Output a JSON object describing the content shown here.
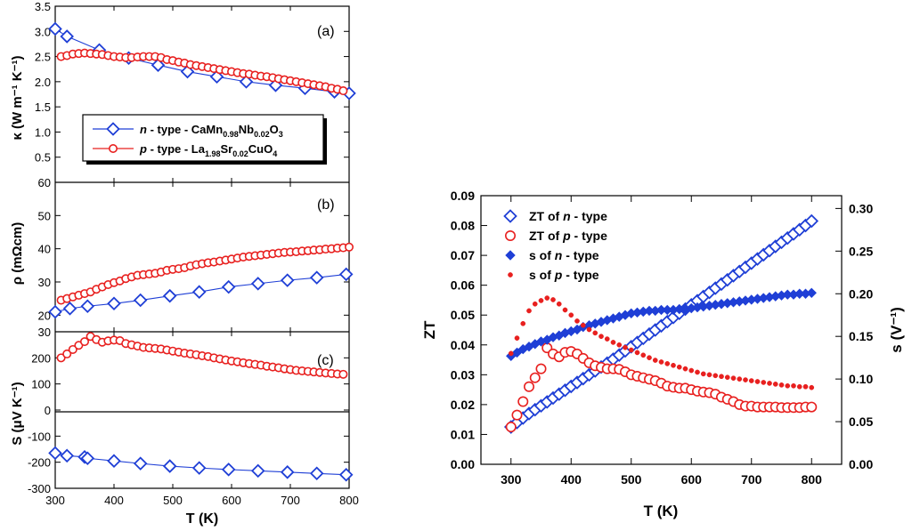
{
  "chart_data": [
    {
      "type": "line",
      "panel": "a",
      "panel_label": "(a)",
      "ylabel": "κ (W m⁻¹ K⁻¹)",
      "ylim": [
        0.0,
        3.5
      ],
      "yticks": [
        "0.5",
        "1.0",
        "1.5",
        "2.0",
        "2.5",
        "3.0",
        "3.5"
      ],
      "top_cut_label": "60",
      "legend_position": "middle-left",
      "series": [
        {
          "name": "n - type - CaMn0.98Nb0.02O3",
          "legend": {
            "prefix": "n",
            "mid": " - type - CaMn",
            "sub1": "0.98",
            "t2": "Nb",
            "sub2": "0.02",
            "t3": "O",
            "sub3": "3"
          },
          "color": "#1f3fd6",
          "marker": "diamond",
          "x": [
            300,
            320,
            375,
            425,
            475,
            525,
            575,
            625,
            675,
            725,
            775,
            800
          ],
          "y": [
            3.05,
            2.9,
            2.63,
            2.47,
            2.33,
            2.2,
            2.1,
            2.0,
            1.93,
            1.87,
            1.8,
            1.77
          ]
        },
        {
          "name": "p - type - La1.98Sr0.02CuO4",
          "legend": {
            "prefix": "p",
            "mid": " - type - La",
            "sub1": "1.98",
            "t2": "Sr",
            "sub2": "0.02",
            "t3": "CuO",
            "sub3": "4"
          },
          "color": "#e8201f",
          "marker": "circle",
          "x": [
            310,
            320,
            330,
            340,
            350,
            360,
            370,
            380,
            390,
            400,
            410,
            420,
            430,
            440,
            450,
            460,
            470,
            480,
            490,
            500,
            510,
            520,
            530,
            540,
            550,
            560,
            570,
            580,
            590,
            600,
            610,
            620,
            630,
            640,
            650,
            660,
            670,
            680,
            690,
            700,
            710,
            720,
            730,
            740,
            750,
            760,
            770,
            780,
            790
          ],
          "y": [
            2.5,
            2.52,
            2.55,
            2.56,
            2.57,
            2.56,
            2.55,
            2.54,
            2.52,
            2.5,
            2.49,
            2.48,
            2.48,
            2.49,
            2.5,
            2.5,
            2.5,
            2.48,
            2.44,
            2.42,
            2.39,
            2.37,
            2.34,
            2.32,
            2.3,
            2.28,
            2.26,
            2.24,
            2.22,
            2.2,
            2.18,
            2.16,
            2.15,
            2.13,
            2.11,
            2.1,
            2.08,
            2.06,
            2.04,
            2.02,
            2.0,
            1.98,
            1.96,
            1.94,
            1.92,
            1.9,
            1.87,
            1.85,
            1.82
          ]
        }
      ]
    },
    {
      "type": "line",
      "panel": "b",
      "panel_label": "(b)",
      "ylabel": "ρ (mΩcm)",
      "ylim": [
        15,
        60
      ],
      "yticks": [
        "20",
        "30",
        "40",
        "50"
      ],
      "top_cut_label": "30",
      "series": [
        {
          "name": "n - type",
          "color": "#1f3fd6",
          "marker": "diamond",
          "x": [
            300,
            325,
            355,
            400,
            445,
            495,
            545,
            595,
            645,
            695,
            745,
            795
          ],
          "y": [
            21.0,
            22.0,
            22.7,
            23.5,
            24.5,
            25.8,
            27.0,
            28.5,
            29.5,
            30.5,
            31.3,
            32.3
          ]
        },
        {
          "name": "p - type",
          "color": "#e8201f",
          "marker": "circle",
          "x": [
            310,
            320,
            330,
            340,
            350,
            360,
            370,
            380,
            390,
            400,
            410,
            420,
            430,
            440,
            450,
            460,
            470,
            480,
            490,
            500,
            510,
            520,
            530,
            540,
            550,
            560,
            570,
            580,
            590,
            600,
            610,
            620,
            630,
            640,
            650,
            660,
            670,
            680,
            690,
            700,
            710,
            720,
            730,
            740,
            750,
            760,
            770,
            780,
            790,
            800
          ],
          "y": [
            24.5,
            25.0,
            25.5,
            26.0,
            26.5,
            27.0,
            27.8,
            28.5,
            29.2,
            29.8,
            30.3,
            31.0,
            31.5,
            32.0,
            32.2,
            32.4,
            32.6,
            33.0,
            33.5,
            33.8,
            34.0,
            34.3,
            34.8,
            35.2,
            35.5,
            35.8,
            36.0,
            36.3,
            36.6,
            36.9,
            37.2,
            37.5,
            37.7,
            37.9,
            38.1,
            38.3,
            38.5,
            38.7,
            38.9,
            39.0,
            39.1,
            39.3,
            39.4,
            39.6,
            39.7,
            39.9,
            40.0,
            40.2,
            40.3,
            40.5
          ]
        }
      ]
    },
    {
      "type": "line",
      "panel": "c",
      "panel_label": "(c)",
      "ylabel": "S (μV K⁻¹)",
      "ylim": [
        -300,
        300
      ],
      "yticks": [
        "-300",
        "-200",
        "-100",
        "0",
        "100",
        "200"
      ],
      "xlabel": "T (K)",
      "xlim": [
        300,
        800
      ],
      "xticks": [
        "300",
        "400",
        "500",
        "600",
        "700",
        "800"
      ],
      "series": [
        {
          "name": "n - type",
          "color": "#1f3fd6",
          "marker": "diamond",
          "x": [
            300,
            320,
            350,
            355,
            400,
            445,
            495,
            545,
            595,
            645,
            695,
            745,
            795
          ],
          "y": [
            -165,
            -175,
            -180,
            -185,
            -195,
            -205,
            -215,
            -222,
            -228,
            -233,
            -238,
            -243,
            -248
          ]
        },
        {
          "name": "p - type",
          "color": "#e8201f",
          "marker": "circle",
          "x": [
            310,
            320,
            330,
            340,
            350,
            360,
            370,
            380,
            390,
            400,
            410,
            420,
            430,
            440,
            450,
            460,
            470,
            480,
            490,
            500,
            510,
            520,
            530,
            540,
            550,
            560,
            570,
            580,
            590,
            600,
            610,
            620,
            630,
            640,
            650,
            660,
            670,
            680,
            690,
            700,
            710,
            720,
            730,
            740,
            750,
            760,
            770,
            780,
            790
          ],
          "y": [
            200,
            215,
            232,
            248,
            262,
            282,
            270,
            260,
            265,
            268,
            266,
            255,
            250,
            245,
            240,
            238,
            236,
            234,
            230,
            226,
            222,
            218,
            215,
            212,
            208,
            205,
            200,
            196,
            192,
            188,
            185,
            181,
            178,
            175,
            172,
            168,
            165,
            162,
            158,
            155,
            152,
            150,
            148,
            146,
            144,
            142,
            140,
            138,
            137
          ]
        }
      ]
    },
    {
      "type": "scatter",
      "panel": "d",
      "xlabel": "T (K)",
      "ylabel": "ZT",
      "y2label": "s (V⁻¹)",
      "xlim": [
        250,
        850
      ],
      "ylim": [
        0.0,
        0.09
      ],
      "y2lim": [
        0.0,
        0.315
      ],
      "xticks": [
        "300",
        "400",
        "500",
        "600",
        "700",
        "800"
      ],
      "yticks": [
        "0.00",
        "0.01",
        "0.02",
        "0.03",
        "0.04",
        "0.05",
        "0.06",
        "0.07",
        "0.08",
        "0.09"
      ],
      "y2ticks": [
        "0.00",
        "0.05",
        "0.10",
        "0.15",
        "0.20",
        "0.25",
        "0.30"
      ],
      "legend_position": "top-left",
      "series": [
        {
          "name": "ZT of n - type",
          "legend": {
            "pre": "ZT of ",
            "it": "n",
            "post": " - type"
          },
          "axis": "left",
          "color": "#1f3fd6",
          "marker": "diamond-open",
          "x": [
            300,
            310,
            320,
            330,
            340,
            350,
            360,
            370,
            380,
            390,
            400,
            410,
            420,
            430,
            440,
            450,
            460,
            470,
            480,
            490,
            500,
            510,
            520,
            530,
            540,
            550,
            560,
            570,
            580,
            590,
            600,
            610,
            620,
            630,
            640,
            650,
            660,
            670,
            680,
            690,
            700,
            710,
            720,
            730,
            740,
            750,
            760,
            770,
            780,
            790,
            800
          ],
          "y": [
            0.0125,
            0.014,
            0.0155,
            0.017,
            0.0183,
            0.0196,
            0.0209,
            0.0222,
            0.0235,
            0.0248,
            0.0261,
            0.0274,
            0.0287,
            0.03,
            0.0313,
            0.0326,
            0.0339,
            0.0352,
            0.0366,
            0.038,
            0.0394,
            0.0408,
            0.0422,
            0.0436,
            0.045,
            0.0464,
            0.0478,
            0.0492,
            0.0506,
            0.052,
            0.0534,
            0.0548,
            0.0562,
            0.0576,
            0.059,
            0.0604,
            0.0618,
            0.0632,
            0.0646,
            0.066,
            0.0674,
            0.0688,
            0.0702,
            0.0716,
            0.073,
            0.0744,
            0.0758,
            0.0772,
            0.0786,
            0.08,
            0.0815
          ]
        },
        {
          "name": "ZT of p - type",
          "legend": {
            "pre": "ZT of ",
            "it": "p",
            "post": " - type"
          },
          "axis": "left",
          "color": "#e8201f",
          "marker": "circle-open",
          "x": [
            300,
            310,
            320,
            330,
            340,
            350,
            360,
            370,
            380,
            390,
            400,
            410,
            420,
            430,
            440,
            450,
            460,
            470,
            480,
            490,
            500,
            510,
            520,
            530,
            540,
            550,
            560,
            570,
            580,
            590,
            600,
            610,
            620,
            630,
            640,
            650,
            660,
            670,
            680,
            690,
            700,
            710,
            720,
            730,
            740,
            750,
            760,
            770,
            780,
            790,
            800
          ],
          "y": [
            0.0125,
            0.0165,
            0.021,
            0.026,
            0.029,
            0.032,
            0.039,
            0.037,
            0.036,
            0.0375,
            0.0378,
            0.037,
            0.0355,
            0.034,
            0.033,
            0.0325,
            0.032,
            0.032,
            0.0318,
            0.031,
            0.03,
            0.0295,
            0.029,
            0.0285,
            0.028,
            0.0272,
            0.0262,
            0.0258,
            0.0255,
            0.0255,
            0.025,
            0.0245,
            0.0242,
            0.024,
            0.0235,
            0.0225,
            0.0218,
            0.021,
            0.02,
            0.0195,
            0.0195,
            0.0192,
            0.0192,
            0.0192,
            0.0192,
            0.019,
            0.019,
            0.019,
            0.019,
            0.0192,
            0.0192
          ]
        },
        {
          "name": "s of n - type",
          "legend": {
            "pre": "s of ",
            "it": "n",
            "post": " - type"
          },
          "axis": "right",
          "color": "#1f3fd6",
          "marker": "diamond-filled",
          "x": [
            300,
            310,
            320,
            330,
            340,
            350,
            360,
            370,
            380,
            390,
            400,
            410,
            420,
            430,
            440,
            450,
            460,
            470,
            480,
            490,
            500,
            510,
            520,
            530,
            540,
            550,
            560,
            570,
            580,
            590,
            600,
            610,
            620,
            630,
            640,
            650,
            660,
            670,
            680,
            690,
            700,
            710,
            720,
            730,
            740,
            750,
            760,
            770,
            780,
            790,
            800
          ],
          "y": [
            0.127,
            0.131,
            0.135,
            0.138,
            0.141,
            0.144,
            0.146,
            0.149,
            0.151,
            0.154,
            0.156,
            0.158,
            0.161,
            0.163,
            0.165,
            0.167,
            0.169,
            0.171,
            0.173,
            0.175,
            0.177,
            0.178,
            0.179,
            0.18,
            0.18,
            0.181,
            0.181,
            0.181,
            0.182,
            0.182,
            0.183,
            0.184,
            0.185,
            0.186,
            0.187,
            0.188,
            0.189,
            0.19,
            0.191,
            0.192,
            0.193,
            0.194,
            0.195,
            0.196,
            0.197,
            0.198,
            0.199,
            0.199,
            0.2,
            0.2,
            0.201
          ]
        },
        {
          "name": "s of p - type",
          "legend": {
            "pre": "s of ",
            "it": "p",
            "post": " - type"
          },
          "axis": "right",
          "color": "#e8201f",
          "marker": "circle-filled",
          "x": [
            300,
            310,
            320,
            330,
            340,
            350,
            360,
            370,
            380,
            390,
            400,
            410,
            420,
            430,
            440,
            450,
            460,
            470,
            480,
            490,
            500,
            510,
            520,
            530,
            540,
            550,
            560,
            570,
            580,
            590,
            600,
            610,
            620,
            630,
            640,
            650,
            660,
            670,
            680,
            690,
            700,
            710,
            720,
            730,
            740,
            750,
            760,
            770,
            780,
            790,
            800
          ],
          "y": [
            0.13,
            0.148,
            0.165,
            0.18,
            0.188,
            0.192,
            0.195,
            0.193,
            0.188,
            0.181,
            0.175,
            0.168,
            0.163,
            0.158,
            0.154,
            0.15,
            0.147,
            0.143,
            0.14,
            0.137,
            0.134,
            0.131,
            0.128,
            0.125,
            0.122,
            0.12,
            0.118,
            0.116,
            0.114,
            0.112,
            0.11,
            0.108,
            0.106,
            0.105,
            0.104,
            0.103,
            0.102,
            0.101,
            0.1,
            0.099,
            0.098,
            0.097,
            0.096,
            0.095,
            0.094,
            0.093,
            0.092,
            0.092,
            0.091,
            0.091,
            0.09
          ]
        }
      ]
    }
  ]
}
